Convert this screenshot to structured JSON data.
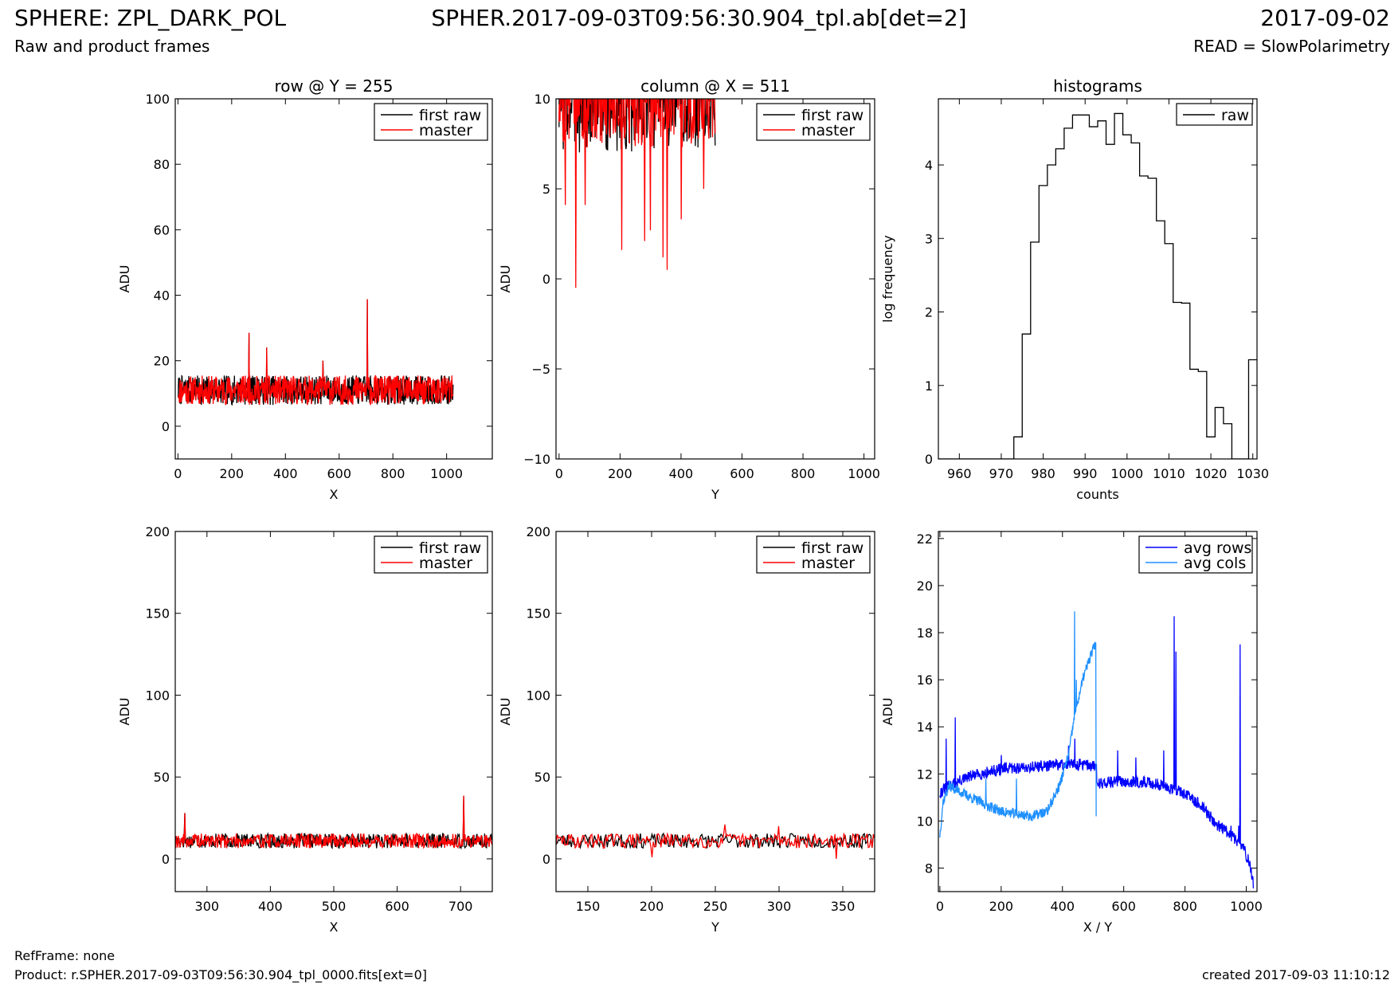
{
  "header": {
    "title": "SPHERE: ZPL_DARK_POL",
    "subtitle": "Raw and product frames",
    "file": "SPHER.2017-09-03T09:56:30.904_tpl.ab[det=2]",
    "date": "2017-09-02",
    "read_mode": "READ = SlowPolarimetry"
  },
  "footer": {
    "ref_frame": "RefFrame: none",
    "product": "Product: r.SPHER.2017-09-03T09:56:30.904_tpl_0000.fits[ext=0]",
    "created": "created 2017-09-03 11:10:12"
  },
  "colors": {
    "first_raw": "#000000",
    "master": "#ff0000",
    "avg_rows": "#0000ff",
    "avg_cols": "#1e90ff"
  },
  "chart_data": [
    {
      "id": "row",
      "type": "line",
      "title": "row @ Y = 255",
      "xlabel": "X",
      "ylabel": "ADU",
      "xlim": [
        -10,
        1170
      ],
      "ylim": [
        -10,
        100
      ],
      "xticks": [
        0,
        200,
        400,
        600,
        800,
        1000
      ],
      "yticks": [
        0,
        20,
        40,
        60,
        80,
        100
      ],
      "legend": {
        "position": "top-right",
        "entries": [
          "first raw",
          "master"
        ]
      },
      "series": [
        {
          "name": "first raw",
          "color": "#000000",
          "noise": {
            "x0": 1,
            "x1": 1024,
            "n": 700,
            "mean": 11,
            "amp": 4.5,
            "seed": 7
          },
          "spikes": [
            [
              265,
              28.5
            ],
            [
              705,
              38.8
            ],
            [
              330,
              24
            ],
            [
              540,
              20
            ]
          ]
        },
        {
          "name": "master",
          "color": "#ff0000",
          "noise": {
            "x0": 1,
            "x1": 1024,
            "n": 700,
            "mean": 11,
            "amp": 4.5,
            "seed": 11
          },
          "spikes": [
            [
              265,
              28.5
            ],
            [
              705,
              38.8
            ],
            [
              330,
              24
            ],
            [
              540,
              20
            ]
          ]
        }
      ]
    },
    {
      "id": "column",
      "type": "line",
      "title": "column @ X = 511",
      "xlabel": "Y",
      "ylabel": "ADU",
      "xlim": [
        -10,
        1035
      ],
      "ylim": [
        -10,
        10
      ],
      "xticks": [
        0,
        200,
        400,
        600,
        800,
        1000
      ],
      "yticks": [
        -10,
        -5,
        0,
        5,
        10
      ],
      "legend": {
        "position": "top-right",
        "entries": [
          "first raw",
          "master"
        ]
      },
      "series": [
        {
          "name": "first raw",
          "color": "#000000",
          "noise": {
            "x0": 0,
            "x1": 512,
            "n": 300,
            "mean": 10,
            "amp": 3,
            "seed": 3
          },
          "spikes": []
        },
        {
          "name": "master",
          "color": "#ff0000",
          "noise": {
            "x0": 0,
            "x1": 512,
            "n": 300,
            "mean": 10.3,
            "amp": 3,
            "seed": 5
          },
          "spikes": [
            [
              55,
              -0.5
            ],
            [
              205,
              1.6
            ],
            [
              280,
              2.1
            ],
            [
              340,
              1.2
            ],
            [
              355,
              0.5
            ],
            [
              400,
              3.3
            ],
            [
              475,
              5
            ],
            [
              20,
              4.1
            ],
            [
              85,
              4.1
            ],
            [
              300,
              2.7
            ]
          ]
        }
      ]
    },
    {
      "id": "histogram",
      "type": "step",
      "title": "histograms",
      "xlabel": "counts",
      "ylabel": "log frequency",
      "xlim": [
        955,
        1031
      ],
      "ylim": [
        0,
        4.9
      ],
      "xticks": [
        960,
        970,
        980,
        990,
        1000,
        1010,
        1020,
        1030
      ],
      "yticks": [
        0,
        1,
        2,
        3,
        4
      ],
      "legend": {
        "position": "top-right",
        "entries": [
          "raw"
        ]
      },
      "series": [
        {
          "name": "raw",
          "color": "#000000",
          "bins": [
            [
              955,
              0
            ],
            [
              973,
              0.3
            ],
            [
              975,
              1.7
            ],
            [
              977,
              2.95
            ],
            [
              979,
              3.72
            ],
            [
              981,
              4
            ],
            [
              983,
              4.22
            ],
            [
              985,
              4.5
            ],
            [
              987,
              4.68
            ],
            [
              991,
              4.52
            ],
            [
              993,
              4.6
            ],
            [
              995,
              4.28
            ],
            [
              997,
              4.7
            ],
            [
              999,
              4.41
            ],
            [
              1001,
              4.3
            ],
            [
              1003,
              3.85
            ],
            [
              1005,
              3.82
            ],
            [
              1007,
              3.24
            ],
            [
              1009,
              2.93
            ],
            [
              1011,
              2.13
            ],
            [
              1013,
              2.12
            ],
            [
              1015,
              1.22
            ],
            [
              1017,
              1.19
            ],
            [
              1019,
              0.3
            ],
            [
              1021,
              0.7
            ],
            [
              1023,
              0.48
            ],
            [
              1025,
              0
            ],
            [
              1029,
              1.35
            ],
            [
              1031,
              1.35
            ]
          ]
        }
      ]
    },
    {
      "id": "row-zoom",
      "type": "line",
      "title": "",
      "xlabel": "X",
      "ylabel": "ADU",
      "xlim": [
        250,
        750
      ],
      "ylim": [
        -20,
        200
      ],
      "xticks": [
        300,
        400,
        500,
        600,
        700
      ],
      "yticks": [
        0,
        50,
        100,
        150,
        200
      ],
      "legend": {
        "position": "top-right",
        "entries": [
          "first raw",
          "master"
        ]
      },
      "series": [
        {
          "name": "first raw",
          "color": "#000000",
          "noise": {
            "x0": 250,
            "x1": 750,
            "n": 500,
            "mean": 11,
            "amp": 4.5,
            "seed": 17
          },
          "spikes": [
            [
              265,
              28
            ],
            [
              705,
              38.5
            ]
          ]
        },
        {
          "name": "master",
          "color": "#ff0000",
          "noise": {
            "x0": 250,
            "x1": 750,
            "n": 500,
            "mean": 11,
            "amp": 4.5,
            "seed": 19
          },
          "spikes": [
            [
              265,
              28
            ],
            [
              705,
              38.5
            ]
          ]
        }
      ]
    },
    {
      "id": "column-zoom",
      "type": "line",
      "title": "",
      "xlabel": "Y",
      "ylabel": "ADU",
      "xlim": [
        125,
        375
      ],
      "ylim": [
        -20,
        200
      ],
      "xticks": [
        150,
        200,
        250,
        300,
        350
      ],
      "yticks": [
        0,
        50,
        100,
        150,
        200
      ],
      "legend": {
        "position": "top-right",
        "entries": [
          "first raw",
          "master"
        ]
      },
      "series": [
        {
          "name": "first raw",
          "color": "#000000",
          "noise": {
            "x0": 125,
            "x1": 375,
            "n": 250,
            "mean": 11,
            "amp": 4.5,
            "seed": 23
          },
          "spikes": []
        },
        {
          "name": "master",
          "color": "#ff0000",
          "noise": {
            "x0": 125,
            "x1": 375,
            "n": 250,
            "mean": 11,
            "amp": 4.5,
            "seed": 29
          },
          "spikes": [
            [
              258,
              21
            ],
            [
              300,
              20
            ],
            [
              200,
              1
            ],
            [
              345,
              0
            ]
          ]
        }
      ]
    },
    {
      "id": "averages",
      "type": "line",
      "title": "",
      "xlabel": "X / Y",
      "ylabel": "ADU",
      "xlim": [
        -5,
        1035
      ],
      "ylim": [
        7,
        22.3
      ],
      "xticks": [
        0,
        200,
        400,
        600,
        800,
        1000
      ],
      "yticks": [
        8,
        10,
        12,
        14,
        16,
        18,
        20,
        22
      ],
      "legend": {
        "position": "top-right",
        "entries": [
          "avg rows",
          "avg cols"
        ]
      },
      "series": [
        {
          "name": "avg rows",
          "color": "#0000ff",
          "profile": [
            [
              0,
              11.2
            ],
            [
              30,
              11.5
            ],
            [
              100,
              11.9
            ],
            [
              200,
              12.2
            ],
            [
              300,
              12.3
            ],
            [
              400,
              12.4
            ],
            [
              470,
              12.4
            ],
            [
              511,
              12.3
            ],
            [
              512,
              11.6
            ],
            [
              600,
              11.7
            ],
            [
              700,
              11.6
            ],
            [
              780,
              11.3
            ],
            [
              850,
              10.7
            ],
            [
              900,
              9.9
            ],
            [
              950,
              9.4
            ],
            [
              990,
              8.9
            ],
            [
              1010,
              8.2
            ],
            [
              1023,
              7.3
            ]
          ],
          "noise_amp": 0.25,
          "n": 900,
          "seed": 31,
          "spikes": [
            [
              20,
              13.5
            ],
            [
              50,
              14.4
            ],
            [
              200,
              12.8
            ],
            [
              420,
              13.2
            ],
            [
              440,
              13.5
            ],
            [
              580,
              13
            ],
            [
              640,
              12.7
            ],
            [
              730,
              13
            ],
            [
              765,
              18.7
            ],
            [
              770,
              17.2
            ],
            [
              950,
              9.8
            ],
            [
              975,
              9.8
            ],
            [
              980,
              17.5
            ]
          ]
        },
        {
          "name": "avg cols",
          "color": "#1e90ff",
          "profile": [
            [
              0,
              9.4
            ],
            [
              10,
              10.8
            ],
            [
              30,
              11.5
            ],
            [
              100,
              11.0
            ],
            [
              200,
              10.4
            ],
            [
              300,
              10.2
            ],
            [
              350,
              10.4
            ],
            [
              390,
              11.5
            ],
            [
              420,
              12.8
            ],
            [
              440,
              14.5
            ],
            [
              470,
              16.2
            ],
            [
              500,
              17.3
            ],
            [
              510,
              17.6
            ]
          ],
          "noise_amp": 0.22,
          "n": 450,
          "seed": 37,
          "spikes": [
            [
              440,
              18.9
            ],
            [
              445,
              16
            ],
            [
              150,
              11.8
            ],
            [
              250,
              11.8
            ],
            [
              510,
              10.2
            ]
          ]
        }
      ]
    }
  ]
}
